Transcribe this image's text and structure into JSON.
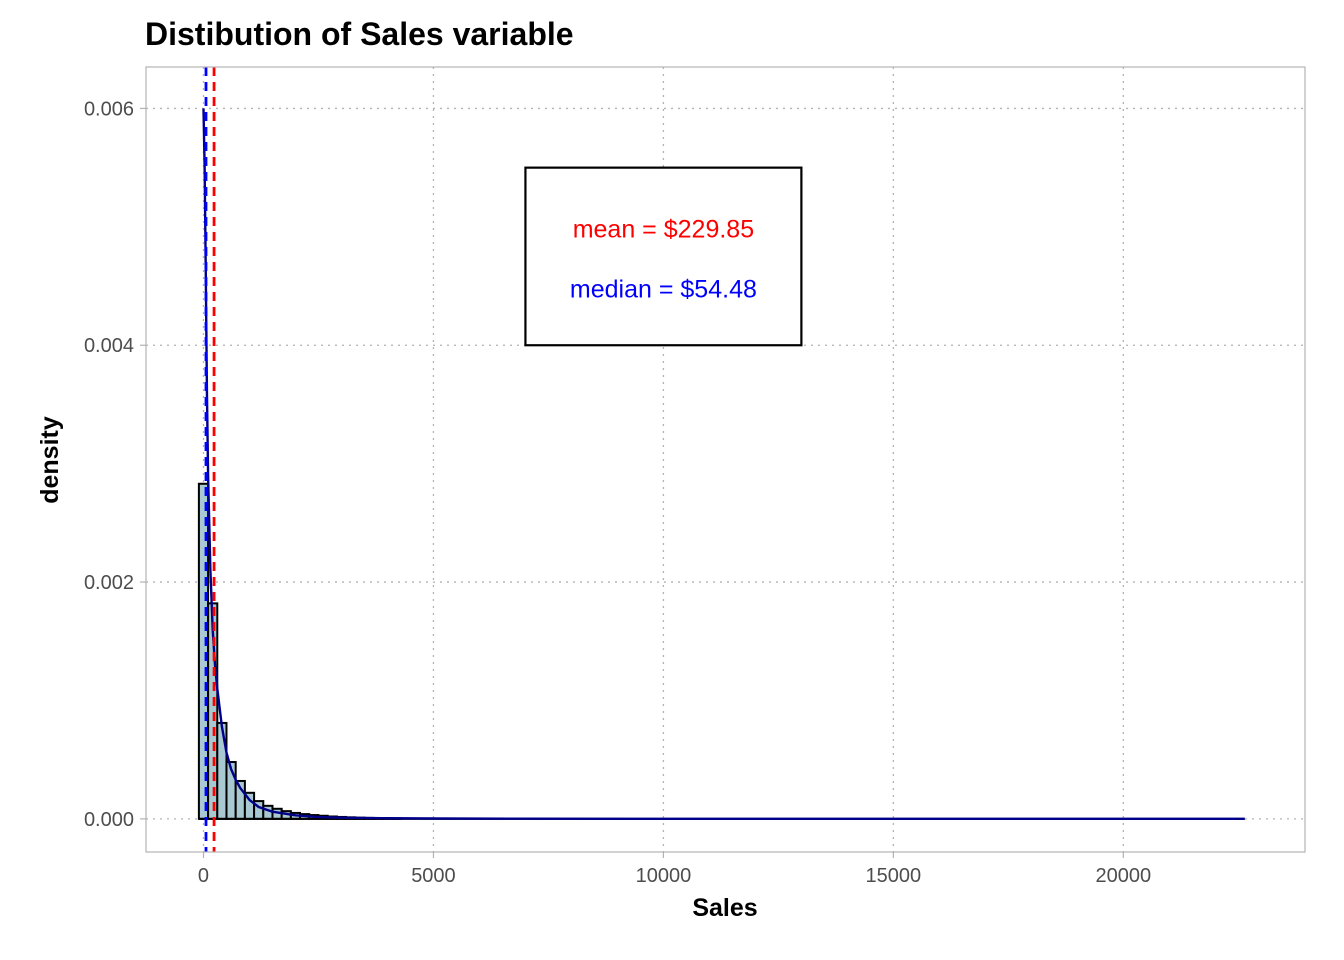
{
  "colors": {
    "mean": "#ff0000",
    "median": "#0000ff",
    "density_curve": "#00008b",
    "bar_fill": "#a9c9d2",
    "bar_outline": "#000000",
    "grid": "#b3b3b3",
    "panel_border": "#b3b3b3"
  },
  "chart_data": {
    "type": "histogram",
    "title": "Distibution of Sales variable",
    "xlabel": "Sales",
    "ylabel": "density",
    "xlim": [
      -1250,
      23950
    ],
    "ylim": [
      -0.00028,
      0.00635
    ],
    "x_ticks": [
      0,
      5000,
      10000,
      15000,
      20000
    ],
    "x_tick_labels": [
      "0",
      "5000",
      "10000",
      "15000",
      "20000"
    ],
    "y_ticks": [
      0,
      0.002,
      0.004,
      0.006
    ],
    "y_tick_labels": [
      "0.000",
      "0.002",
      "0.004",
      "0.006"
    ],
    "grid": "dotted",
    "bins": {
      "start": -100,
      "width": 200,
      "densities": [
        0.00283,
        0.00182,
        0.00081,
        0.00048,
        0.00032,
        0.00022,
        0.00015,
        0.00011,
        8.5e-05,
        6.5e-05,
        5e-05,
        4e-05,
        3.2e-05,
        2.6e-05,
        2e-05,
        1.6e-05,
        1.3e-05,
        1e-05,
        8e-06,
        6.5e-06,
        5e-06,
        4e-06
      ]
    },
    "density_curve": {
      "x": [
        0,
        25,
        50,
        75,
        100,
        150,
        200,
        250,
        300,
        400,
        500,
        600,
        700,
        800,
        1000,
        1200,
        1500,
        2000,
        2500,
        3000,
        4000,
        5000,
        7000,
        10000,
        15000,
        20000,
        22640
      ],
      "y": [
        0.006,
        0.0055,
        0.0046,
        0.0036,
        0.0029,
        0.0021,
        0.0016,
        0.0013,
        0.0011,
        0.00078,
        0.00056,
        0.00042,
        0.00033,
        0.00026,
        0.00016,
        0.0001,
        6e-05,
        3e-05,
        1.5e-05,
        1e-05,
        5e-06,
        3e-06,
        1e-06,
        0,
        0,
        0,
        0
      ]
    },
    "mean_line": {
      "value": 229.85,
      "label": "mean = $229.85"
    },
    "median_line": {
      "value": 54.48,
      "label": "median = $54.48"
    },
    "annotation_box": {
      "xmin": 7000,
      "xmax": 13000,
      "ymin": 0.004,
      "ymax": 0.0055
    }
  }
}
